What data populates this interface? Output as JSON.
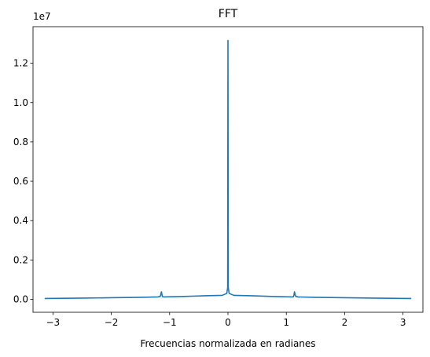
{
  "chart_data": {
    "type": "line",
    "title": "FFT",
    "xlabel": "Frecuencias normalizada en radianes",
    "ylabel": "",
    "y_offset_label": "1e7",
    "xlim": [
      -3.3416,
      3.3416
    ],
    "ylim": [
      -0.066,
      1.386
    ],
    "x_ticks": [
      -3,
      -2,
      -1,
      0,
      1,
      2,
      3
    ],
    "x_tick_labels": [
      "−3",
      "−2",
      "−1",
      "0",
      "1",
      "2",
      "3"
    ],
    "y_ticks": [
      0.0,
      0.2,
      0.4,
      0.6,
      0.8,
      1.0,
      1.2
    ],
    "y_tick_labels": [
      "0.0",
      "0.2",
      "0.4",
      "0.6",
      "0.8",
      "1.0",
      "1.2"
    ],
    "grid": false,
    "series": [
      {
        "color": "#1f77b4",
        "x": [
          -3.1416,
          -2.5,
          -2.0,
          -1.5,
          -1.2,
          -1.16,
          -1.14,
          -1.13,
          -1.12,
          -1.1,
          -0.8,
          -0.4,
          -0.1,
          -0.02,
          -0.005,
          0.0,
          0.005,
          0.02,
          0.1,
          0.4,
          0.8,
          1.1,
          1.12,
          1.13,
          1.14,
          1.16,
          1.2,
          1.5,
          2.0,
          2.5,
          3.1416
        ],
        "y": [
          0.004,
          0.006,
          0.008,
          0.01,
          0.012,
          0.015,
          0.038,
          0.02,
          0.013,
          0.012,
          0.014,
          0.018,
          0.02,
          0.03,
          0.06,
          1.316,
          0.06,
          0.03,
          0.02,
          0.018,
          0.014,
          0.012,
          0.013,
          0.02,
          0.038,
          0.015,
          0.012,
          0.01,
          0.008,
          0.006,
          0.004
        ]
      }
    ]
  }
}
